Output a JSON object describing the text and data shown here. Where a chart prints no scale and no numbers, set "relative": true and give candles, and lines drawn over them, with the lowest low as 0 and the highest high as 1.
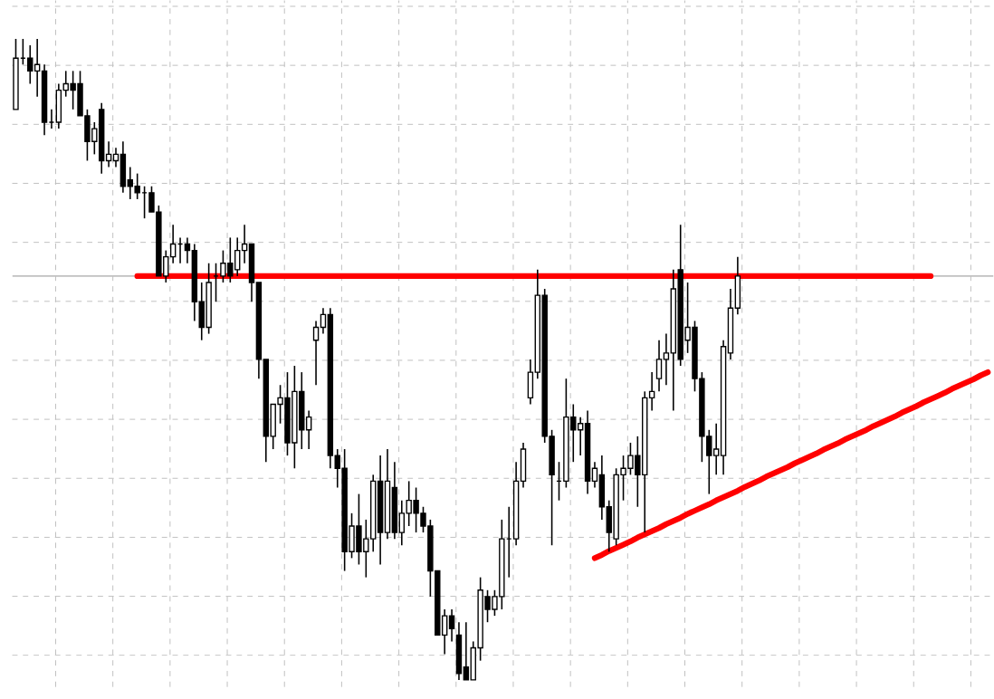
{
  "chart_data": {
    "type": "candlestick",
    "relative": true,
    "grid": true,
    "categories": [
      null,
      null,
      null,
      null,
      null,
      null,
      null,
      null,
      null,
      null,
      null,
      null,
      null,
      null,
      null,
      null,
      null,
      null,
      null,
      null,
      null,
      null,
      null,
      null,
      null,
      null,
      null,
      null,
      null,
      null,
      null,
      null,
      null,
      null,
      null,
      null,
      null,
      null,
      null,
      null,
      null,
      null,
      null,
      null,
      null,
      null,
      null,
      null,
      null,
      null,
      null,
      null,
      null,
      null,
      null,
      null,
      null,
      null,
      null,
      null,
      null,
      null,
      null,
      null,
      null,
      null,
      null,
      null,
      null,
      null,
      null,
      null,
      null,
      null,
      null,
      null,
      null,
      null,
      null,
      null,
      null,
      null,
      null,
      null,
      null,
      null,
      null,
      null,
      null,
      null,
      null,
      null,
      null,
      null,
      null,
      null,
      null,
      null,
      null,
      null,
      null,
      null,
      null,
      null,
      null,
      null,
      null,
      null,
      null,
      null,
      null,
      null,
      null,
      null,
      null,
      null,
      null,
      null,
      null,
      null,
      null,
      null,
      null,
      null,
      null,
      null,
      null,
      null,
      null,
      null,
      null,
      null,
      null,
      null,
      null,
      null,
      null
    ],
    "ohlc": [
      [
        0.89,
        1.0,
        0.89,
        0.97
      ],
      [
        0.97,
        1.0,
        0.96,
        0.97
      ],
      [
        0.97,
        0.99,
        0.93,
        0.95
      ],
      [
        0.95,
        1.0,
        0.91,
        0.96
      ],
      [
        0.95,
        0.96,
        0.85,
        0.87
      ],
      [
        0.87,
        0.89,
        0.86,
        0.87
      ],
      [
        0.87,
        0.93,
        0.86,
        0.92
      ],
      [
        0.92,
        0.95,
        0.91,
        0.93
      ],
      [
        0.93,
        0.95,
        0.89,
        0.92
      ],
      [
        0.93,
        0.95,
        0.88,
        0.88
      ],
      [
        0.88,
        0.89,
        0.81,
        0.84
      ],
      [
        0.84,
        0.87,
        0.82,
        0.86
      ],
      [
        0.89,
        0.9,
        0.79,
        0.81
      ],
      [
        0.81,
        0.84,
        0.8,
        0.82
      ],
      [
        0.81,
        0.83,
        0.8,
        0.82
      ],
      [
        0.82,
        0.84,
        0.76,
        0.77
      ],
      [
        0.78,
        0.8,
        0.75,
        0.77
      ],
      [
        0.77,
        0.79,
        0.75,
        0.76
      ],
      [
        0.76,
        0.77,
        0.72,
        0.76
      ],
      [
        0.76,
        0.77,
        0.73,
        0.73
      ],
      [
        0.73,
        0.74,
        0.63,
        0.63
      ],
      [
        0.63,
        0.67,
        0.62,
        0.66
      ],
      [
        0.66,
        0.71,
        0.65,
        0.68
      ],
      [
        0.68,
        0.69,
        0.65,
        0.68
      ],
      [
        0.68,
        0.69,
        0.65,
        0.67
      ],
      [
        0.67,
        0.68,
        0.56,
        0.59
      ],
      [
        0.59,
        0.62,
        0.53,
        0.55
      ],
      [
        0.55,
        0.65,
        0.54,
        0.62
      ],
      [
        0.63,
        0.65,
        0.59,
        0.63
      ],
      [
        0.63,
        0.67,
        0.62,
        0.65
      ],
      [
        0.65,
        0.69,
        0.62,
        0.63
      ],
      [
        0.64,
        0.69,
        0.63,
        0.67
      ],
      [
        0.67,
        0.71,
        0.65,
        0.68
      ],
      [
        0.68,
        0.68,
        0.59,
        0.62
      ],
      [
        0.62,
        0.62,
        0.47,
        0.5
      ],
      [
        0.5,
        0.5,
        0.34,
        0.38
      ],
      [
        0.38,
        0.43,
        0.36,
        0.43
      ],
      [
        0.43,
        0.46,
        0.4,
        0.44
      ],
      [
        0.44,
        0.48,
        0.35,
        0.37
      ],
      [
        0.37,
        0.49,
        0.33,
        0.45
      ],
      [
        0.45,
        0.48,
        0.36,
        0.39
      ],
      [
        0.39,
        0.42,
        0.36,
        0.41
      ],
      [
        0.53,
        0.56,
        0.46,
        0.55
      ],
      [
        0.55,
        0.58,
        0.54,
        0.57
      ],
      [
        0.57,
        0.58,
        0.33,
        0.35
      ],
      [
        0.35,
        0.36,
        0.3,
        0.33
      ],
      [
        0.33,
        0.36,
        0.17,
        0.2
      ],
      [
        0.2,
        0.26,
        0.19,
        0.24
      ],
      [
        0.24,
        0.29,
        0.18,
        0.2
      ],
      [
        0.2,
        0.25,
        0.16,
        0.22
      ],
      [
        0.22,
        0.32,
        0.2,
        0.31
      ],
      [
        0.31,
        0.35,
        0.18,
        0.23
      ],
      [
        0.23,
        0.36,
        0.22,
        0.31
      ],
      [
        0.3,
        0.34,
        0.22,
        0.23
      ],
      [
        0.23,
        0.28,
        0.21,
        0.26
      ],
      [
        0.26,
        0.31,
        0.24,
        0.28
      ],
      [
        0.28,
        0.3,
        0.23,
        0.26
      ],
      [
        0.26,
        0.27,
        0.23,
        0.24
      ],
      [
        0.24,
        0.25,
        0.13,
        0.17
      ],
      [
        0.17,
        0.17,
        0.07,
        0.07
      ],
      [
        0.07,
        0.11,
        0.04,
        0.1
      ],
      [
        0.1,
        0.11,
        0.06,
        0.08
      ],
      [
        0.07,
        0.09,
        0.0,
        0.01
      ],
      [
        0.02,
        0.09,
        0.0,
        0.0
      ],
      [
        0.0,
        0.06,
        0.0,
        0.05
      ],
      [
        0.05,
        0.16,
        0.03,
        0.14
      ],
      [
        0.13,
        0.14,
        0.09,
        0.11
      ],
      [
        0.11,
        0.14,
        0.1,
        0.13
      ],
      [
        0.13,
        0.25,
        0.11,
        0.22
      ],
      [
        0.22,
        0.27,
        0.16,
        0.22
      ],
      [
        0.22,
        0.34,
        0.21,
        0.31
      ],
      [
        0.31,
        0.37,
        0.3,
        0.36
      ],
      [
        0.44,
        0.5,
        0.43,
        0.48
      ],
      [
        0.48,
        0.64,
        0.47,
        0.6
      ],
      [
        0.6,
        0.61,
        0.37,
        0.38
      ],
      [
        0.38,
        0.39,
        0.21,
        0.32
      ],
      [
        0.31,
        0.34,
        0.28,
        0.31
      ],
      [
        0.31,
        0.47,
        0.3,
        0.41
      ],
      [
        0.41,
        0.43,
        0.34,
        0.39
      ],
      [
        0.39,
        0.41,
        0.35,
        0.4
      ],
      [
        0.4,
        0.42,
        0.29,
        0.31
      ],
      [
        0.31,
        0.34,
        0.3,
        0.33
      ],
      [
        0.32,
        0.35,
        0.25,
        0.27
      ],
      [
        0.27,
        0.28,
        0.2,
        0.23
      ],
      [
        0.22,
        0.33,
        0.21,
        0.32
      ],
      [
        0.32,
        0.35,
        0.28,
        0.33
      ],
      [
        0.33,
        0.37,
        0.32,
        0.35
      ],
      [
        0.35,
        0.38,
        0.27,
        0.32
      ],
      [
        0.32,
        0.45,
        0.23,
        0.44
      ],
      [
        0.44,
        0.48,
        0.42,
        0.45
      ],
      [
        0.47,
        0.53,
        0.45,
        0.5
      ],
      [
        0.5,
        0.54,
        0.46,
        0.51
      ],
      [
        0.51,
        0.64,
        0.42,
        0.61
      ],
      [
        0.64,
        0.71,
        0.49,
        0.5
      ],
      [
        0.53,
        0.62,
        0.51,
        0.55
      ],
      [
        0.55,
        0.56,
        0.45,
        0.47
      ],
      [
        0.47,
        0.48,
        0.34,
        0.38
      ],
      [
        0.38,
        0.39,
        0.29,
        0.35
      ],
      [
        0.35,
        0.4,
        0.32,
        0.36
      ],
      [
        0.35,
        0.53,
        0.32,
        0.52
      ],
      [
        0.51,
        0.61,
        0.5,
        0.58
      ],
      [
        0.58,
        0.66,
        0.57,
        0.63
      ],
      null,
      null,
      null,
      null,
      null,
      null,
      null,
      null,
      null,
      null,
      null,
      null,
      null,
      null,
      null,
      null,
      null,
      null,
      null,
      null,
      null,
      null,
      null,
      null,
      null,
      null,
      null,
      null,
      null,
      null,
      null,
      null,
      null,
      null,
      null
    ],
    "series": [
      {
        "type": "line",
        "color": "#ff0000",
        "values": [
          null,
          null,
          null,
          null,
          null,
          null,
          null,
          null,
          null,
          null,
          null,
          null,
          null,
          null,
          null,
          null,
          null,
          0.63,
          0.63,
          0.63,
          0.63,
          0.63,
          0.63,
          0.63,
          0.63,
          0.63,
          0.63,
          0.63,
          0.63,
          0.63,
          0.63,
          0.63,
          0.63,
          0.63,
          0.63,
          0.63,
          0.63,
          0.63,
          0.63,
          0.63,
          0.63,
          0.63,
          0.63,
          0.63,
          0.63,
          0.63,
          0.63,
          0.63,
          0.63,
          0.63,
          0.63,
          0.63,
          0.63,
          0.63,
          0.63,
          0.63,
          0.63,
          0.63,
          0.63,
          0.63,
          0.63,
          0.63,
          0.63,
          0.63,
          0.63,
          0.63,
          0.63,
          0.63,
          0.63,
          0.63,
          0.63,
          0.63,
          0.63,
          0.63,
          0.63,
          0.63,
          0.63,
          0.63,
          0.63,
          0.63,
          0.63,
          0.63,
          0.63,
          0.63,
          0.63,
          0.63,
          0.63,
          0.63,
          0.63,
          0.63,
          0.63,
          0.63,
          0.63,
          0.63,
          0.63,
          0.63,
          0.63,
          0.63,
          0.63,
          0.63,
          0.63,
          0.63,
          0.63,
          0.63,
          0.63,
          0.63,
          0.63,
          0.63,
          0.63,
          0.63,
          0.63,
          0.63,
          0.63,
          0.63,
          0.63,
          0.63,
          0.63,
          0.63,
          0.63,
          0.63,
          0.63,
          0.63,
          0.63,
          0.63,
          0.63,
          0.63,
          0.63,
          0.63,
          0.63,
          null,
          null,
          null,
          null,
          null,
          null,
          null,
          null
        ]
      },
      {
        "type": "line",
        "color": "#ff0000",
        "values": [
          null,
          null,
          null,
          null,
          null,
          null,
          null,
          null,
          null,
          null,
          null,
          null,
          null,
          null,
          null,
          null,
          null,
          null,
          null,
          null,
          null,
          null,
          null,
          null,
          null,
          null,
          null,
          null,
          null,
          null,
          null,
          null,
          null,
          null,
          null,
          null,
          null,
          null,
          null,
          null,
          null,
          null,
          null,
          null,
          null,
          null,
          null,
          null,
          null,
          null,
          null,
          null,
          null,
          null,
          null,
          null,
          null,
          null,
          null,
          null,
          null,
          null,
          null,
          null,
          null,
          null,
          null,
          null,
          null,
          null,
          null,
          null,
          null,
          null,
          null,
          null,
          null,
          null,
          null,
          null,
          null,
          0.19,
          0.195,
          0.201,
          0.206,
          0.211,
          0.216,
          0.222,
          0.227,
          0.232,
          0.237,
          0.243,
          0.248,
          0.253,
          0.259,
          0.264,
          0.269,
          0.274,
          0.28,
          0.285,
          0.29,
          0.295,
          0.301,
          0.306,
          0.311,
          0.317,
          0.322,
          0.327,
          0.332,
          0.338,
          0.343,
          0.348,
          0.353,
          0.359,
          0.364,
          0.369,
          0.375,
          0.38,
          0.385,
          0.39,
          0.396,
          0.401,
          0.406,
          0.411,
          0.417,
          0.422,
          0.427,
          0.433,
          0.438,
          0.443,
          0.448,
          0.454,
          0.459,
          0.464,
          0.469,
          0.475,
          0.48
        ]
      }
    ],
    "ref_lines": [
      {
        "axis": "y",
        "value": 0.63,
        "color": "#c0c0c0"
      }
    ]
  }
}
